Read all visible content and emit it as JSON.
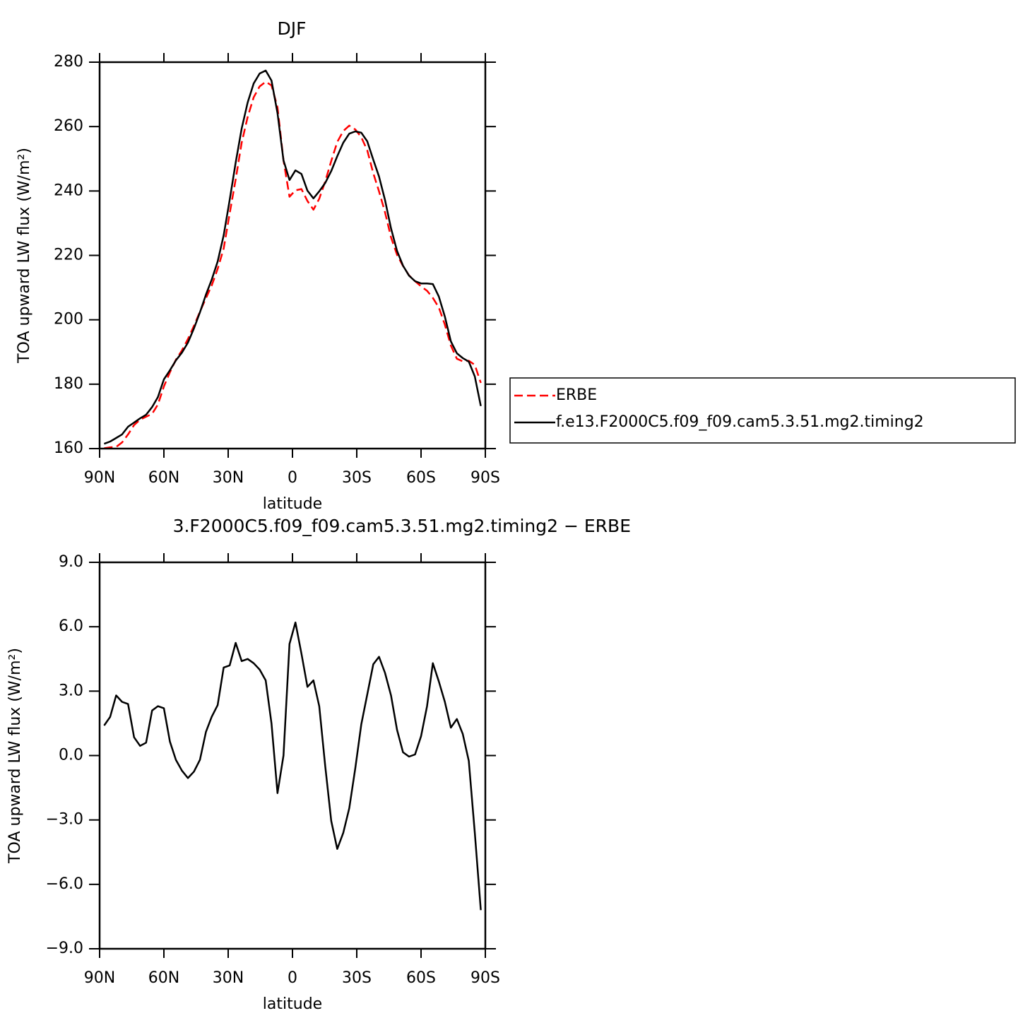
{
  "chart_data": [
    {
      "type": "line",
      "title": "DJF",
      "xlabel": "latitude",
      "ylabel": "TOA upward LW flux (W/m²)",
      "x": [
        87.9,
        85.1,
        82.3,
        79.5,
        76.7,
        73.9,
        71.1,
        68.3,
        65.5,
        62.8,
        60.0,
        57.2,
        54.4,
        51.6,
        48.8,
        46.0,
        43.2,
        40.4,
        37.7,
        34.9,
        32.1,
        29.3,
        26.5,
        23.7,
        20.9,
        18.1,
        15.3,
        12.5,
        9.8,
        7.0,
        4.2,
        1.4,
        -1.4,
        -4.2,
        -7.0,
        -9.8,
        -12.5,
        -15.3,
        -18.1,
        -20.9,
        -23.7,
        -26.5,
        -29.3,
        -32.1,
        -34.9,
        -37.7,
        -40.4,
        -43.2,
        -46.0,
        -48.8,
        -51.6,
        -54.4,
        -57.2,
        -60.0,
        -62.8,
        -65.5,
        -68.3,
        -71.1,
        -73.9,
        -76.7,
        -79.5,
        -82.3,
        -85.1,
        -87.9
      ],
      "series": [
        {
          "name": "ERBE",
          "color": "#ff0000",
          "linestyle": "dashed",
          "values": [
            160.1,
            160.4,
            160.5,
            161.9,
            164.4,
            167.3,
            169.0,
            169.9,
            170.8,
            173.7,
            179.3,
            183.7,
            187.6,
            190.5,
            194.0,
            198.1,
            202.5,
            206.7,
            210.6,
            215.8,
            222.1,
            233.0,
            243.6,
            255.0,
            263.0,
            269.1,
            272.5,
            273.9,
            272.8,
            266.0,
            249.5,
            238.2,
            240.2,
            240.6,
            236.9,
            234.2,
            237.6,
            243.0,
            249.3,
            255.2,
            258.6,
            260.3,
            259.1,
            256.7,
            252.6,
            245.5,
            239.9,
            233.4,
            225.6,
            220.2,
            216.7,
            213.8,
            212.0,
            210.4,
            209.0,
            206.8,
            203.8,
            198.5,
            192.0,
            187.9,
            187.1,
            187.3,
            186.0,
            180.4
          ]
        },
        {
          "name": "f.e13.F2000C5.f09_f09.cam5.3.51.mg2.timing2",
          "color": "#000000",
          "linestyle": "solid",
          "values": [
            161.5,
            162.2,
            163.3,
            164.4,
            166.8,
            168.1,
            169.4,
            170.5,
            172.9,
            176.0,
            181.5,
            184.3,
            187.4,
            189.8,
            192.9,
            197.3,
            202.3,
            207.8,
            212.4,
            218.1,
            226.2,
            237.2,
            248.8,
            259.4,
            267.5,
            273.4,
            276.5,
            277.4,
            274.3,
            264.2,
            249.5,
            243.4,
            246.4,
            245.3,
            240.1,
            237.7,
            239.9,
            242.5,
            246.2,
            250.8,
            255.0,
            257.8,
            258.5,
            258.1,
            255.4,
            249.7,
            244.5,
            237.2,
            228.4,
            221.4,
            216.8,
            213.7,
            212.0,
            211.3,
            211.3,
            211.1,
            207.2,
            201.0,
            193.3,
            189.6,
            188.1,
            187.0,
            182.4,
            173.2
          ]
        }
      ],
      "xlim": [
        90,
        -90
      ],
      "xticks": [
        {
          "value": 90,
          "label": "90N"
        },
        {
          "value": 60,
          "label": "60N"
        },
        {
          "value": 30,
          "label": "30N"
        },
        0,
        {
          "value": -30,
          "label": "30S"
        },
        {
          "value": -60,
          "label": "60S"
        },
        {
          "value": -90,
          "label": "90S"
        }
      ],
      "ylim": [
        160,
        280
      ],
      "yticks": [
        160,
        180,
        200,
        220,
        240,
        260,
        280
      ],
      "legend": "right"
    },
    {
      "type": "line",
      "title": "3.F2000C5.f09_f09.cam5.3.51.mg2.timing2 − ERBE",
      "xlabel": "latitude",
      "ylabel": "TOA upward LW flux (W/m²)",
      "x": [
        87.9,
        85.1,
        82.3,
        79.5,
        76.7,
        73.9,
        71.1,
        68.3,
        65.5,
        62.8,
        60.0,
        57.2,
        54.4,
        51.6,
        48.8,
        46.0,
        43.2,
        40.4,
        37.7,
        34.9,
        32.1,
        29.3,
        26.5,
        23.7,
        20.9,
        18.1,
        15.3,
        12.5,
        9.8,
        7.0,
        4.2,
        1.4,
        -1.4,
        -4.2,
        -7.0,
        -9.8,
        -12.5,
        -15.3,
        -18.1,
        -20.9,
        -23.7,
        -26.5,
        -29.3,
        -32.1,
        -34.9,
        -37.7,
        -40.4,
        -43.2,
        -46.0,
        -48.8,
        -51.6,
        -54.4,
        -57.2,
        -60.0,
        -62.8,
        -65.5,
        -68.3,
        -71.1,
        -73.9,
        -76.7,
        -79.5,
        -82.3,
        -85.1,
        -87.9
      ],
      "values": [
        1.4,
        1.8,
        2.8,
        2.5,
        2.4,
        0.85,
        0.45,
        0.6,
        2.1,
        2.3,
        2.2,
        0.65,
        -0.2,
        -0.7,
        -1.05,
        -0.75,
        -0.2,
        1.1,
        1.8,
        2.35,
        4.1,
        4.2,
        5.25,
        4.4,
        4.5,
        4.3,
        4.0,
        3.5,
        1.5,
        -1.75,
        0.0,
        5.2,
        6.2,
        4.75,
        3.2,
        3.5,
        2.3,
        -0.5,
        -3.05,
        -4.35,
        -3.6,
        -2.45,
        -0.6,
        1.45,
        2.85,
        4.25,
        4.6,
        3.85,
        2.8,
        1.2,
        0.15,
        -0.05,
        0.05,
        0.9,
        2.3,
        4.3,
        3.45,
        2.5,
        1.3,
        1.7,
        1.0,
        -0.25,
        -3.6,
        -7.2
      ],
      "color": "#000000",
      "xlim": [
        90,
        -90
      ],
      "xticks": [
        {
          "value": 90,
          "label": "90N"
        },
        {
          "value": 60,
          "label": "60N"
        },
        {
          "value": 30,
          "label": "30N"
        },
        0,
        {
          "value": -30,
          "label": "30S"
        },
        {
          "value": -60,
          "label": "60S"
        },
        {
          "value": -90,
          "label": "90S"
        }
      ],
      "ylim": [
        -9,
        9
      ],
      "yticks": [
        {
          "value": -9,
          "label": "−9.0"
        },
        {
          "value": -6,
          "label": "−6.0"
        },
        {
          "value": -3,
          "label": "−3.0"
        },
        {
          "value": 0,
          "label": "0.0"
        },
        {
          "value": 3,
          "label": "3.0"
        },
        {
          "value": 6,
          "label": "6.0"
        },
        {
          "value": 9,
          "label": "9.0"
        }
      ]
    }
  ]
}
